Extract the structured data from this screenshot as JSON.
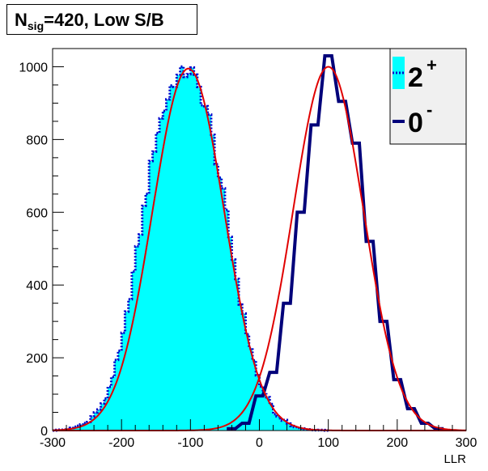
{
  "title": {
    "main": "N",
    "sub": "sig",
    "rest": "=420, Low S/B"
  },
  "colors": {
    "signal_fill": "#00ffff",
    "signal_line": "#0000cc",
    "scalar_line": "#00007a",
    "fit": "#e00000",
    "legend_bg": "#f0f0f0"
  },
  "chart_data": {
    "type": "area",
    "xlabel": "LLR",
    "ylabel": "",
    "xlim": [
      -300,
      300
    ],
    "ylim": [
      0,
      1050
    ],
    "xticks": [
      -300,
      -200,
      -100,
      0,
      100,
      200,
      300
    ],
    "yticks": [
      0,
      200,
      400,
      600,
      800,
      1000
    ],
    "grid": false,
    "legend_position": "top-right",
    "legend": [
      {
        "label": "2",
        "sup": "+"
      },
      {
        "label": "0",
        "sup": "-"
      }
    ],
    "series": [
      {
        "name": "2+",
        "style": "filled histogram, dotted outline",
        "bin_width": 5,
        "gauss_fit": {
          "mean": -103,
          "sigma": 52,
          "amplitude": 995
        },
        "x": [
          -300,
          -275,
          -250,
          -225,
          -200,
          -175,
          -150,
          -125,
          -100,
          -75,
          -50,
          -25,
          0,
          25,
          50,
          75,
          100
        ],
        "values": [
          0,
          4,
          22,
          75,
          230,
          520,
          810,
          960,
          995,
          880,
          620,
          330,
          130,
          40,
          10,
          2,
          0
        ]
      },
      {
        "name": "0-",
        "style": "open histogram, thick line",
        "bin_width": 10,
        "gauss_fit": {
          "mean": 100,
          "sigma": 51,
          "amplitude": 1000
        },
        "x": [
          -40,
          -20,
          0,
          20,
          40,
          60,
          80,
          100,
          120,
          140,
          160,
          180,
          200,
          220,
          240,
          260
        ],
        "values": [
          5,
          20,
          95,
          160,
          350,
          600,
          840,
          1030,
          905,
          790,
          520,
          300,
          140,
          60,
          20,
          5
        ]
      }
    ]
  }
}
